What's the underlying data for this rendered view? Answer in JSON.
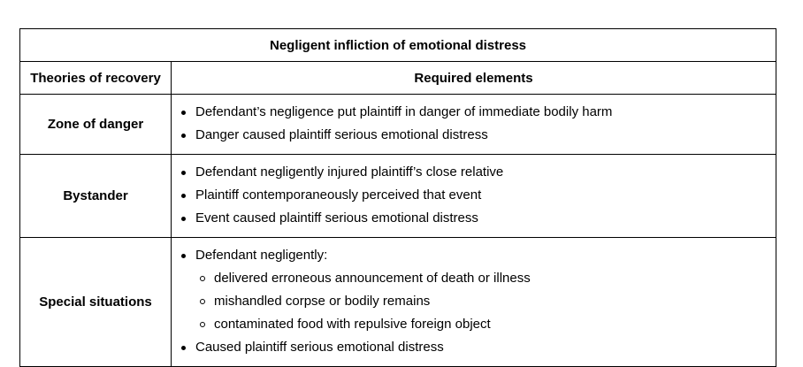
{
  "table": {
    "title": "Negligent infliction of emotional distress",
    "headers": {
      "theories": "Theories of recovery",
      "elements": "Required elements"
    },
    "rows": [
      {
        "theory": "Zone of danger",
        "items": [
          {
            "text": "Defendant’s negligence put plaintiff in danger of immediate bodily harm"
          },
          {
            "text": "Danger caused plaintiff serious emotional distress"
          }
        ]
      },
      {
        "theory": "Bystander",
        "items": [
          {
            "text": "Defendant negligently injured plaintiff’s close relative"
          },
          {
            "text": "Plaintiff contemporaneously perceived that event"
          },
          {
            "text": "Event caused plaintiff serious emotional distress"
          }
        ]
      },
      {
        "theory": "Special situations",
        "items": [
          {
            "text": "Defendant negligently:",
            "sub": [
              "delivered erroneous announcement of death or illness",
              "mishandled corpse or bodily remains",
              "contaminated food with repulsive foreign object"
            ]
          },
          {
            "text": "Caused plaintiff serious emotional distress"
          }
        ]
      }
    ]
  }
}
